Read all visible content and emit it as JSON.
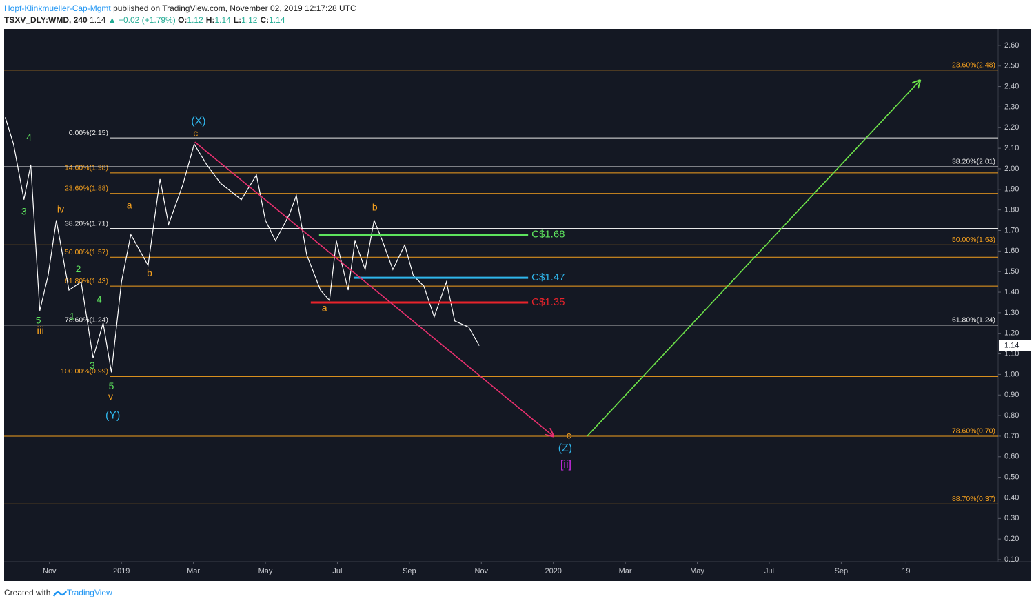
{
  "header": {
    "author": "Hopf-Klinkmueller-Cap-Mgmt",
    "published": "published on TradingView.com, November 02, 2019 12:17:28 UTC"
  },
  "legend": {
    "symbol": "TSXV_DLY:WMD, 240",
    "last": "1.14",
    "arrow": "▲",
    "change": "+0.02 (+1.79%)",
    "ohlc": [
      {
        "key": "O:",
        "value": "1.12"
      },
      {
        "key": "H:",
        "value": "1.14"
      },
      {
        "key": "L:",
        "value": "1.12"
      },
      {
        "key": "C:",
        "value": "1.14"
      }
    ]
  },
  "chart_data": {
    "type": "line",
    "color": "#ffffff",
    "grid": false,
    "x": [
      -0.23,
      0,
      0.29,
      0.48,
      0.73,
      0.96,
      1.19,
      1.54,
      1.88,
      2.21,
      2.49,
      2.72,
      3.0,
      3.26,
      3.74,
      4.07,
      4.31,
      4.7,
      5.02,
      5.37,
      5.75,
      6.33,
      6.75,
      7.0,
      7.28,
      7.67,
      7.86,
      8.15,
      8.53,
      8.78,
      8.97,
      9.3,
      9.49,
      9.77,
      10.02,
      10.25,
      10.54,
      10.87,
      11.11,
      11.4,
      11.69,
      12.03,
      12.26,
      12.65,
      12.94
    ],
    "values": [
      2.25,
      2.12,
      1.85,
      2.02,
      1.31,
      1.48,
      1.75,
      1.41,
      1.45,
      1.08,
      1.25,
      1.01,
      1.45,
      1.68,
      1.53,
      1.95,
      1.73,
      1.92,
      2.12,
      2.02,
      1.93,
      1.85,
      1.97,
      1.75,
      1.65,
      1.78,
      1.87,
      1.58,
      1.41,
      1.36,
      1.65,
      1.41,
      1.65,
      1.51,
      1.75,
      1.65,
      1.51,
      1.63,
      1.48,
      1.43,
      1.28,
      1.45,
      1.26,
      1.23,
      1.14
    ],
    "last_price": 1.14,
    "xlim": [
      -0.26,
      27.36
    ],
    "ylim": [
      0.09,
      2.68
    ],
    "xticks": [
      {
        "value": 1,
        "label": "Nov"
      },
      {
        "value": 3,
        "label": "2019"
      },
      {
        "value": 5,
        "label": "Mar"
      },
      {
        "value": 7,
        "label": "May"
      },
      {
        "value": 9,
        "label": "Jul"
      },
      {
        "value": 11,
        "label": "Sep"
      },
      {
        "value": 13,
        "label": "Nov"
      },
      {
        "value": 15,
        "label": "2020"
      },
      {
        "value": 17,
        "label": "Mar"
      },
      {
        "value": 19,
        "label": "May"
      },
      {
        "value": 21,
        "label": "Jul"
      },
      {
        "value": 23,
        "label": "Sep"
      },
      {
        "value": 24.8,
        "label": "19"
      }
    ],
    "yticks": [
      {
        "value": 0.1,
        "label": "0.10"
      },
      {
        "value": 0.2,
        "label": "0.20"
      },
      {
        "value": 0.3,
        "label": "0.30"
      },
      {
        "value": 0.4,
        "label": "0.40"
      },
      {
        "value": 0.5,
        "label": "0.50"
      },
      {
        "value": 0.6,
        "label": "0.60"
      },
      {
        "value": 0.7,
        "label": "0.70"
      },
      {
        "value": 0.8,
        "label": "0.80"
      },
      {
        "value": 0.9,
        "label": "0.90"
      },
      {
        "value": 1.0,
        "label": "1.00"
      },
      {
        "value": 1.1,
        "label": "1.10"
      },
      {
        "value": 1.2,
        "label": "1.20"
      },
      {
        "value": 1.3,
        "label": "1.30"
      },
      {
        "value": 1.4,
        "label": "1.40"
      },
      {
        "value": 1.5,
        "label": "1.50"
      },
      {
        "value": 1.6,
        "label": "1.60"
      },
      {
        "value": 1.7,
        "label": "1.70"
      },
      {
        "value": 1.8,
        "label": "1.80"
      },
      {
        "value": 1.9,
        "label": "1.90"
      },
      {
        "value": 2.0,
        "label": "2.00"
      },
      {
        "value": 2.1,
        "label": "2.10"
      },
      {
        "value": 2.2,
        "label": "2.20"
      },
      {
        "value": 2.3,
        "label": "2.30"
      },
      {
        "value": 2.4,
        "label": "2.40"
      },
      {
        "value": 2.5,
        "label": "2.50"
      },
      {
        "value": 2.6,
        "label": "2.60"
      }
    ],
    "fib_levels": [
      {
        "label": "0.00%(2.15)",
        "value": 2.15,
        "color": "#e8e8e8",
        "span": "left"
      },
      {
        "label": "14.60%(1.98)",
        "value": 1.98,
        "color": "#f5a01e",
        "span": "left"
      },
      {
        "label": "23.60%(1.88)",
        "value": 1.88,
        "color": "#f5a01e",
        "span": "left"
      },
      {
        "label": "38.20%(1.71)",
        "value": 1.71,
        "color": "#e8e8e8",
        "span": "left"
      },
      {
        "label": "50.00%(1.57)",
        "value": 1.57,
        "color": "#f5a01e",
        "span": "left"
      },
      {
        "label": "61.80%(1.43)",
        "value": 1.43,
        "color": "#f5a01e",
        "span": "left"
      },
      {
        "label": "78.60%(1.24)",
        "value": 1.24,
        "color": "#e8e8e8",
        "span": "left"
      },
      {
        "label": "100.00%(0.99)",
        "value": 0.99,
        "color": "#f5a01e",
        "span": "left"
      },
      {
        "label": "23.60%(2.48)",
        "value": 2.48,
        "color": "#f5a01e",
        "span": "full"
      },
      {
        "label": "38.20%(2.01)",
        "value": 2.01,
        "color": "#e8e8e8",
        "span": "full"
      },
      {
        "label": "50.00%(1.63)",
        "value": 1.63,
        "color": "#f5a01e",
        "span": "full"
      },
      {
        "label": "61.80%(1.24)",
        "value": 1.24,
        "color": "#e8e8e8",
        "span": "full"
      },
      {
        "label": "78.60%(0.70)",
        "value": 0.7,
        "color": "#f5a01e",
        "span": "full"
      },
      {
        "label": "88.70%(0.37)",
        "value": 0.37,
        "color": "#f5a01e",
        "span": "full"
      }
    ],
    "price_levels": [
      {
        "label": "C$1.68",
        "value": 1.68,
        "x": [
          8.49,
          14.3
        ],
        "color": "#5ee35e"
      },
      {
        "label": "C$1.47",
        "value": 1.47,
        "x": [
          9.45,
          14.3
        ],
        "color": "#2fb6ec"
      },
      {
        "label": "C$1.35",
        "value": 1.35,
        "x": [
          8.26,
          14.3
        ],
        "color": "#e8232b"
      }
    ],
    "arrows": [
      {
        "x": [
          5.04,
          15.0
        ],
        "y": [
          2.13,
          0.7
        ],
        "color": "#e8306e"
      },
      {
        "x": [
          15.94,
          25.19
        ],
        "y": [
          0.7,
          2.43
        ],
        "color": "#6ee44a"
      }
    ],
    "annotations": [
      {
        "text": "4",
        "x": 0.43,
        "y": 2.15,
        "color": "#5ee35e"
      },
      {
        "text": "3",
        "x": 0.29,
        "y": 1.79,
        "color": "#5ee35e"
      },
      {
        "text": "iv",
        "x": 1.31,
        "y": 1.8,
        "color": "#f5a01e"
      },
      {
        "text": "2",
        "x": 1.8,
        "y": 1.51,
        "color": "#5ee35e"
      },
      {
        "text": "4",
        "x": 2.38,
        "y": 1.36,
        "color": "#5ee35e"
      },
      {
        "text": "5",
        "x": 0.69,
        "y": 1.26,
        "color": "#5ee35e"
      },
      {
        "text": "iii",
        "x": 0.75,
        "y": 1.21,
        "color": "#f5a01e"
      },
      {
        "text": "1",
        "x": 1.63,
        "y": 1.28,
        "color": "#5ee35e"
      },
      {
        "text": "3",
        "x": 2.19,
        "y": 1.04,
        "color": "#5ee35e"
      },
      {
        "text": "5",
        "x": 2.72,
        "y": 0.94,
        "color": "#5ee35e"
      },
      {
        "text": "v",
        "x": 2.7,
        "y": 0.89,
        "color": "#f5a01e"
      },
      {
        "text": "(Y)",
        "x": 2.76,
        "y": 0.8,
        "color": "#2fb6ec"
      },
      {
        "text": "(X)",
        "x": 5.14,
        "y": 2.23,
        "color": "#2fb6ec"
      },
      {
        "text": "c",
        "x": 5.06,
        "y": 2.17,
        "color": "#f5a01e"
      },
      {
        "text": "a",
        "x": 3.22,
        "y": 1.82,
        "color": "#f5a01e"
      },
      {
        "text": "b",
        "x": 3.78,
        "y": 1.49,
        "color": "#f5a01e"
      },
      {
        "text": "b",
        "x": 10.04,
        "y": 1.81,
        "color": "#f5a01e"
      },
      {
        "text": "a",
        "x": 8.64,
        "y": 1.32,
        "color": "#f5a01e"
      },
      {
        "text": "c",
        "x": 15.43,
        "y": 0.7,
        "color": "#f5a01e"
      },
      {
        "text": "(Z)",
        "x": 15.33,
        "y": 0.64,
        "color": "#2fb6ec"
      },
      {
        "text": "[ii]",
        "x": 15.35,
        "y": 0.56,
        "color": "#d62cf0"
      }
    ]
  },
  "footer": {
    "created": "Created with",
    "brand": "TradingView"
  }
}
